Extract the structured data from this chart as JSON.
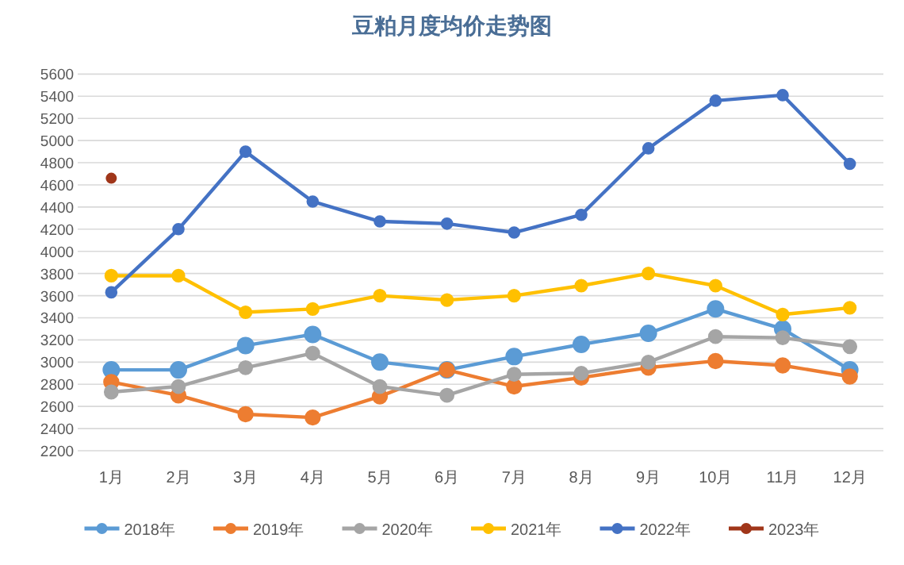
{
  "chart_data": {
    "type": "line",
    "title": "豆粕月度均价走势图",
    "categories": [
      "1月",
      "2月",
      "3月",
      "4月",
      "5月",
      "6月",
      "7月",
      "8月",
      "9月",
      "10月",
      "11月",
      "12月"
    ],
    "ylim": [
      2200,
      5600
    ],
    "yticks": [
      2200,
      2400,
      2600,
      2800,
      3000,
      3200,
      3400,
      3600,
      3800,
      4000,
      4200,
      4400,
      4600,
      4800,
      5000,
      5200,
      5400,
      5600
    ],
    "grid": "y",
    "legend": "bottom",
    "marker": "circle",
    "line_style": "solid",
    "series": [
      {
        "name": "2018年",
        "color": "#5b9bd5",
        "values": [
          2930,
          2930,
          3150,
          3250,
          3000,
          2930,
          3050,
          3160,
          3260,
          3480,
          3300,
          2930
        ]
      },
      {
        "name": "2019年",
        "color": "#ed7d31",
        "values": [
          2820,
          2700,
          2530,
          2500,
          2690,
          2930,
          2780,
          2860,
          2950,
          3010,
          2970,
          2870
        ]
      },
      {
        "name": "2020年",
        "color": "#a5a5a5",
        "values": [
          2730,
          2780,
          2950,
          3080,
          2780,
          2700,
          2890,
          2900,
          3000,
          3230,
          3220,
          3140
        ]
      },
      {
        "name": "2021年",
        "color": "#ffc000",
        "values": [
          3780,
          3780,
          3450,
          3480,
          3600,
          3560,
          3600,
          3690,
          3800,
          3690,
          3430,
          3490
        ]
      },
      {
        "name": "2022年",
        "color": "#4472c4",
        "values": [
          3630,
          4200,
          4900,
          4450,
          4270,
          4250,
          4170,
          4330,
          4930,
          5360,
          5410,
          4790
        ]
      },
      {
        "name": "2023年",
        "color": "#a0361a",
        "values": [
          4660,
          null,
          null,
          null,
          null,
          null,
          null,
          null,
          null,
          null,
          null,
          null
        ]
      }
    ]
  }
}
